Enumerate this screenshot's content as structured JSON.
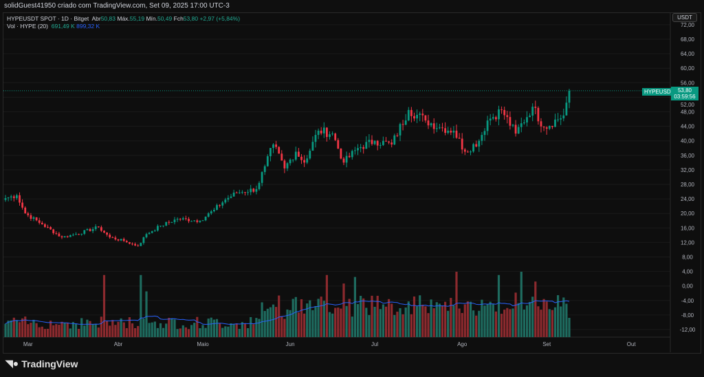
{
  "header": {
    "title": "solidGuest41950 criado com TradingView.com, Set 09, 2025 17:00 UTC-3"
  },
  "legend": {
    "symbol": "HYPEUSDT SPOT · 1D · Bitget",
    "open_label": "Abr",
    "open": "50,83",
    "high_label": "Máx.",
    "high": "55,19",
    "low_label": "Mín.",
    "low": "50,49",
    "close_label": "Fch",
    "close": "53,80",
    "change": "+2,97 (+5,84%)",
    "vol_label": "Vol · HYPE (20)",
    "vol": "691,49 K",
    "vol_ma": "899,32 K"
  },
  "currency_button": "USDT",
  "price_tag": {
    "symbol": "HYPEUSDT",
    "price": "53,80",
    "countdown": "03:59:56"
  },
  "logo": "TradingView",
  "colors": {
    "up": "#089981",
    "down": "#f23645",
    "vol_up": "#1e6b5f",
    "vol_down": "#8c2a2e",
    "ma": "#2962ff"
  },
  "chart_data": {
    "type": "candlestick",
    "start_date": "2025-02-21",
    "x_unit": "days since start",
    "close_points": [
      [
        0,
        24.2
      ],
      [
        4,
        25
      ],
      [
        7,
        20
      ],
      [
        13,
        17
      ],
      [
        20,
        13.4
      ],
      [
        25,
        14.3
      ],
      [
        33,
        16.2
      ],
      [
        37,
        13.4
      ],
      [
        42,
        12.4
      ],
      [
        47,
        11
      ],
      [
        50,
        14.3
      ],
      [
        55,
        16.6
      ],
      [
        61,
        18.5
      ],
      [
        69,
        18
      ],
      [
        74,
        21
      ],
      [
        78,
        23.8
      ],
      [
        82,
        25.7
      ],
      [
        89,
        26.7
      ],
      [
        92,
        33
      ],
      [
        95,
        39
      ],
      [
        99,
        32.4
      ],
      [
        103,
        37
      ],
      [
        106,
        34
      ],
      [
        111,
        42.8
      ],
      [
        116,
        42
      ],
      [
        120,
        34
      ],
      [
        125,
        38
      ],
      [
        131,
        40
      ],
      [
        137,
        39
      ],
      [
        143,
        48.5
      ],
      [
        149,
        45.6
      ],
      [
        154,
        43.7
      ],
      [
        159,
        42.8
      ],
      [
        163,
        37
      ],
      [
        168,
        40
      ],
      [
        171,
        45.6
      ],
      [
        176,
        48.5
      ],
      [
        181,
        42
      ],
      [
        187,
        49.4
      ],
      [
        191,
        43.7
      ],
      [
        198,
        47
      ],
      [
        200,
        53.8
      ]
    ],
    "y_ticks": [
      "72,00",
      "68,00",
      "64,00",
      "60,00",
      "56,00",
      "52,00",
      "48,00",
      "44,00",
      "40,00",
      "36,00",
      "32,00",
      "28,00",
      "24,00",
      "20,00",
      "16,00",
      "12,00",
      "8,00",
      "4,00",
      "0,00",
      "-4,00",
      "-8,00",
      "-12,00"
    ],
    "y_tick_values": [
      72,
      68,
      64,
      60,
      56,
      52,
      48,
      44,
      40,
      36,
      32,
      28,
      24,
      20,
      16,
      12,
      8,
      4,
      0,
      -4,
      -8,
      -12
    ],
    "x_ticks": [
      {
        "label": "Mar",
        "day": 8
      },
      {
        "label": "Abr",
        "day": 40
      },
      {
        "label": "Maio",
        "day": 70
      },
      {
        "label": "Jun",
        "day": 101
      },
      {
        "label": "Jul",
        "day": 131
      },
      {
        "label": "Ago",
        "day": 162
      },
      {
        "label": "Set",
        "day": 192
      },
      {
        "label": "Out",
        "day": 222
      }
    ],
    "last_price": 53.8,
    "volume_spikes": [
      [
        35,
        0.95
      ],
      [
        48,
        0.95
      ],
      [
        50,
        0.7
      ],
      [
        114,
        0.95
      ],
      [
        120,
        0.82
      ],
      [
        124,
        0.92
      ],
      [
        160,
        1.0
      ],
      [
        175,
        0.95
      ],
      [
        183,
        1.0
      ],
      [
        188,
        0.85
      ]
    ]
  }
}
